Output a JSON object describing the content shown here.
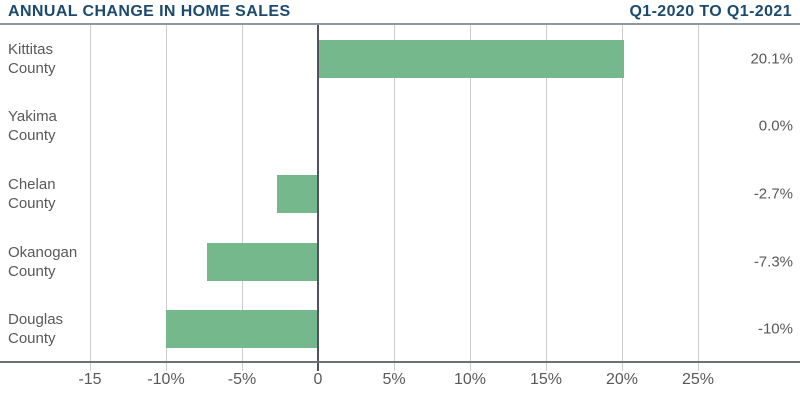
{
  "header": {
    "title_left": "ANNUAL CHANGE IN HOME SALES",
    "title_right": "Q1-2020 TO Q1-2021"
  },
  "colors": {
    "title": "#1c4a6e",
    "bar": "#74b88c",
    "text": "#58595b",
    "gridline": "#cccccc",
    "zero_line": "#50545a",
    "axis_line": "#6d7073",
    "divider": "#8d98a1"
  },
  "chart_data": {
    "type": "bar",
    "orientation": "horizontal",
    "title": "ANNUAL CHANGE IN HOME SALES",
    "subtitle": "Q1-2020 TO Q1-2021",
    "categories": [
      "Kittitas County",
      "Yakima County",
      "Chelan County",
      "Okanogan County",
      "Douglas County"
    ],
    "values": [
      20.1,
      0.0,
      -2.7,
      -7.3,
      -10
    ],
    "value_labels": [
      "20.1%",
      "0.0%",
      "-2.7%",
      "-7.3%",
      "-10%"
    ],
    "x_ticks": [
      {
        "value": -15,
        "label": "-15"
      },
      {
        "value": -10,
        "label": "-10%"
      },
      {
        "value": -5,
        "label": "-5%"
      },
      {
        "value": 0,
        "label": "0"
      },
      {
        "value": 5,
        "label": "5%"
      },
      {
        "value": 10,
        "label": "10%"
      },
      {
        "value": 15,
        "label": "15%"
      },
      {
        "value": 20,
        "label": "20%"
      },
      {
        "value": 25,
        "label": "25%"
      }
    ],
    "xlim": [
      -15,
      25
    ],
    "grid": true,
    "legend": false,
    "unit": "%"
  }
}
